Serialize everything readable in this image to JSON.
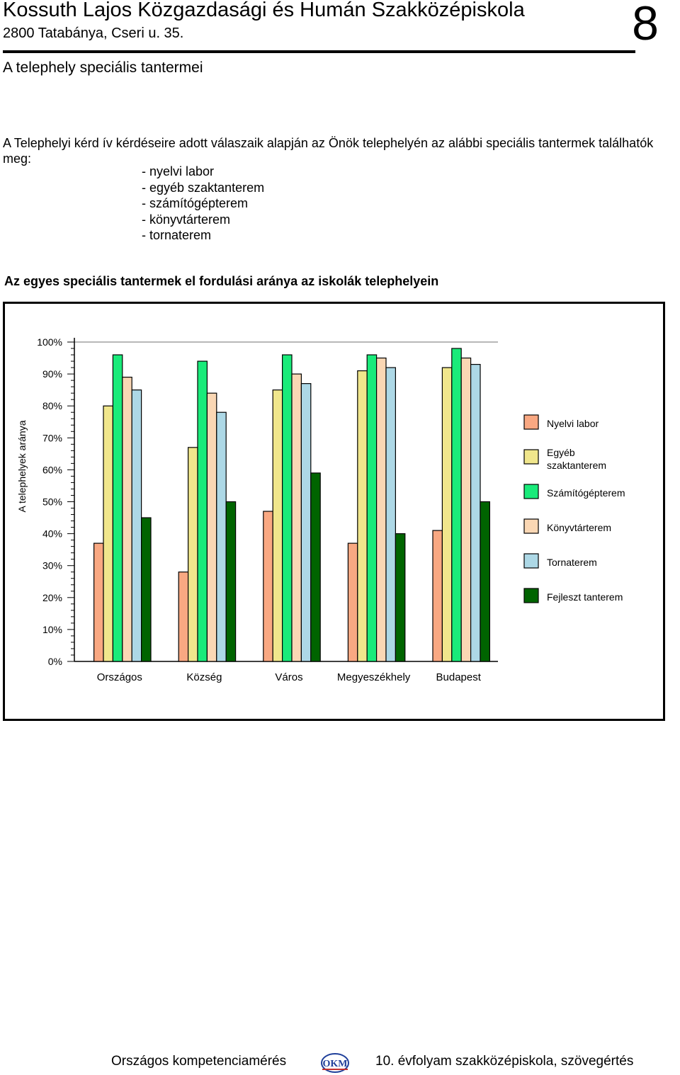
{
  "header": {
    "school_name": "Kossuth Lajos Közgazdasági és Humán Szakközépiskola",
    "address": "2800 Tatabánya, Cseri u. 35.",
    "page_number": "8",
    "section_title": "A telephely speciális tantermei"
  },
  "intro": {
    "text": "A Telephelyi kérd   ív kérdéseire adott válaszaik alapján az Önök telephelyén az alábbi speciális tantermek találhatók meg:",
    "rooms": [
      "- nyelvi labor",
      "- egyéb szaktanterem",
      "- számítógépterem",
      "- könyvtárterem",
      "- tornaterem"
    ]
  },
  "chart_data": {
    "type": "bar",
    "title": "Az egyes speciális tantermek el   fordulási aránya az iskolák telephelyein",
    "ylabel": "A telephelyek aránya",
    "xlabel": "",
    "ylim": [
      0,
      100
    ],
    "y_ticks": [
      "0%",
      "10%",
      "20%",
      "30%",
      "40%",
      "50%",
      "60%",
      "70%",
      "80%",
      "90%",
      "100%"
    ],
    "categories": [
      "Országos",
      "Község",
      "Város",
      "Megyeszékhely",
      "Budapest"
    ],
    "legend_position": "right",
    "series": [
      {
        "name": "Nyelvi labor",
        "color": "#f9a882",
        "values": [
          37,
          28,
          47,
          37,
          41
        ]
      },
      {
        "name": "Egyéb szaktanterem",
        "color": "#f0e68c",
        "values": [
          80,
          67,
          85,
          91,
          92
        ]
      },
      {
        "name": "Számítógépterem",
        "color": "#1aeb7a",
        "values": [
          96,
          94,
          96,
          96,
          98
        ]
      },
      {
        "name": "Könyvtárterem",
        "color": "#fad7b4",
        "values": [
          89,
          84,
          90,
          95,
          95
        ]
      },
      {
        "name": "Tornaterem",
        "color": "#add8e6",
        "values": [
          85,
          78,
          87,
          92,
          93
        ]
      },
      {
        "name": "Fejleszt   tanterem",
        "color": "#006400",
        "values": [
          45,
          50,
          59,
          40,
          50
        ]
      }
    ]
  },
  "footer": {
    "left": "Országos kompetenciamérés",
    "logo_text": "OKM",
    "right": "10. évfolyam szakközépiskola, szövegértés"
  }
}
